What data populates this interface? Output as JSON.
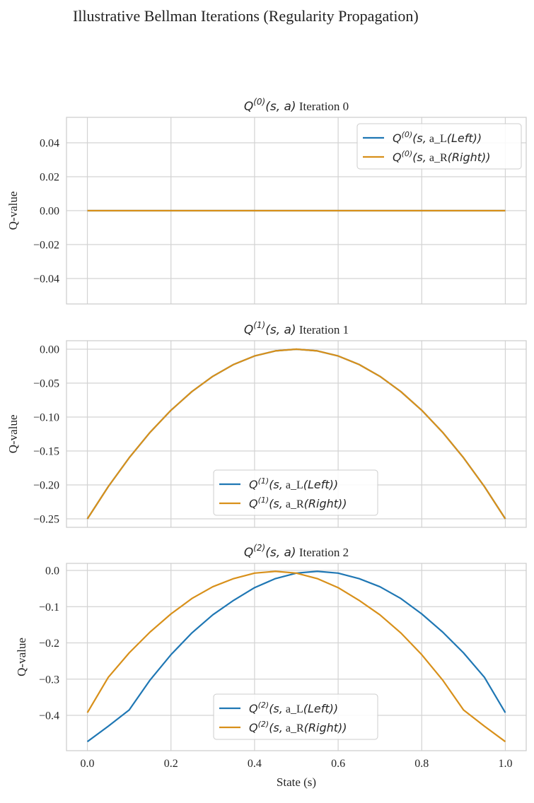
{
  "figure_title": "Illustrative Bellman Iterations (Regularity Propagation)",
  "colors": {
    "left": "#1f77b4",
    "right": "#d8901a",
    "grid": "#d3d3d3",
    "spine": "#cccccc"
  },
  "chart_data": [
    {
      "type": "line",
      "title": "Q^(0)(s, a) Iteration 0",
      "title_parts": {
        "q": "Q",
        "sup": "(0)",
        "args": "(s, a)",
        "suffix": "Iteration 0"
      },
      "xlabel": "",
      "ylabel": "Q-value",
      "xlim": [
        -0.05,
        1.05
      ],
      "ylim": [
        -0.055,
        0.055
      ],
      "xticks": [
        "0.0",
        "0.2",
        "0.4",
        "0.6",
        "0.8",
        "1.0"
      ],
      "xtick_values": [
        0.0,
        0.2,
        0.4,
        0.6,
        0.8,
        1.0
      ],
      "show_xticklabels": false,
      "yticks": [
        "0.04",
        "0.02",
        "0.00",
        "−0.02",
        "−0.04"
      ],
      "ytick_values": [
        0.04,
        0.02,
        0.0,
        -0.02,
        -0.04
      ],
      "grid": true,
      "legend_placement": "top-right",
      "x": [
        0.0,
        0.05,
        0.1,
        0.15,
        0.2,
        0.25,
        0.3,
        0.35,
        0.4,
        0.45,
        0.5,
        0.55,
        0.6,
        0.65,
        0.7,
        0.75,
        0.8,
        0.85,
        0.9,
        0.95,
        1.0
      ],
      "series": [
        {
          "name": "Q^(0)(s, a_L(Left))",
          "legend_parts": {
            "q": "Q",
            "sup": "(0)",
            "pre": "(s,",
            "mid": " a_L",
            "post": "(Left))"
          },
          "color": "#1f77b4",
          "values": [
            0,
            0,
            0,
            0,
            0,
            0,
            0,
            0,
            0,
            0,
            0,
            0,
            0,
            0,
            0,
            0,
            0,
            0,
            0,
            0,
            0
          ]
        },
        {
          "name": "Q^(0)(s, a_R(Right))",
          "legend_parts": {
            "q": "Q",
            "sup": "(0)",
            "pre": "(s,",
            "mid": " a_R",
            "post": "(Right))"
          },
          "color": "#d8901a",
          "values": [
            0,
            0,
            0,
            0,
            0,
            0,
            0,
            0,
            0,
            0,
            0,
            0,
            0,
            0,
            0,
            0,
            0,
            0,
            0,
            0,
            0
          ]
        }
      ]
    },
    {
      "type": "line",
      "title": "Q^(1)(s, a) Iteration 1",
      "title_parts": {
        "q": "Q",
        "sup": "(1)",
        "args": "(s, a)",
        "suffix": "Iteration 1"
      },
      "xlabel": "",
      "ylabel": "Q-value",
      "xlim": [
        -0.05,
        1.05
      ],
      "ylim": [
        -0.2625,
        0.0125
      ],
      "xticks": [
        "0.0",
        "0.2",
        "0.4",
        "0.6",
        "0.8",
        "1.0"
      ],
      "xtick_values": [
        0.0,
        0.2,
        0.4,
        0.6,
        0.8,
        1.0
      ],
      "show_xticklabels": false,
      "yticks": [
        "0.00",
        "−0.05",
        "−0.10",
        "−0.15",
        "−0.20",
        "−0.25"
      ],
      "ytick_values": [
        0.0,
        -0.05,
        -0.1,
        -0.15,
        -0.2,
        -0.25
      ],
      "grid": true,
      "legend_placement": "lower-center",
      "x": [
        0.0,
        0.05,
        0.1,
        0.15,
        0.2,
        0.25,
        0.3,
        0.35,
        0.4,
        0.45,
        0.5,
        0.55,
        0.6,
        0.65,
        0.7,
        0.75,
        0.8,
        0.85,
        0.9,
        0.95,
        1.0
      ],
      "series": [
        {
          "name": "Q^(1)(s, a_L(Left))",
          "legend_parts": {
            "q": "Q",
            "sup": "(1)",
            "pre": "(s,",
            "mid": " a_L",
            "post": "(Left))"
          },
          "color": "#1f77b4",
          "values": [
            -0.25,
            -0.2025,
            -0.16,
            -0.1225,
            -0.09,
            -0.0625,
            -0.04,
            -0.0225,
            -0.01,
            -0.0025,
            0.0,
            -0.0025,
            -0.01,
            -0.0225,
            -0.04,
            -0.0625,
            -0.09,
            -0.1225,
            -0.16,
            -0.2025,
            -0.25
          ]
        },
        {
          "name": "Q^(1)(s, a_R(Right))",
          "legend_parts": {
            "q": "Q",
            "sup": "(1)",
            "pre": "(s,",
            "mid": " a_R",
            "post": "(Right))"
          },
          "color": "#d8901a",
          "values": [
            -0.25,
            -0.2025,
            -0.16,
            -0.1225,
            -0.09,
            -0.0625,
            -0.04,
            -0.0225,
            -0.01,
            -0.0025,
            0.0,
            -0.0025,
            -0.01,
            -0.0225,
            -0.04,
            -0.0625,
            -0.09,
            -0.1225,
            -0.16,
            -0.2025,
            -0.25
          ]
        }
      ]
    },
    {
      "type": "line",
      "title": "Q^(2)(s, a) Iteration 2",
      "title_parts": {
        "q": "Q",
        "sup": "(2)",
        "args": "(s, a)",
        "suffix": "Iteration 2"
      },
      "xlabel": "State (s)",
      "ylabel": "Q-value",
      "xlim": [
        -0.05,
        1.05
      ],
      "ylim": [
        -0.4975,
        0.0195
      ],
      "xticks": [
        "0.0",
        "0.2",
        "0.4",
        "0.6",
        "0.8",
        "1.0"
      ],
      "xtick_values": [
        0.0,
        0.2,
        0.4,
        0.6,
        0.8,
        1.0
      ],
      "show_xticklabels": true,
      "yticks": [
        "0.0",
        "−0.1",
        "−0.2",
        "−0.3",
        "−0.4"
      ],
      "ytick_values": [
        0.0,
        -0.1,
        -0.2,
        -0.3,
        -0.4
      ],
      "grid": true,
      "legend_placement": "lower-center",
      "x": [
        0.0,
        0.05,
        0.1,
        0.15,
        0.2,
        0.25,
        0.3,
        0.35,
        0.4,
        0.45,
        0.5,
        0.55,
        0.6,
        0.65,
        0.7,
        0.75,
        0.8,
        0.85,
        0.9,
        0.95,
        1.0
      ],
      "series": [
        {
          "name": "Q^(2)(s, a_L(Left))",
          "legend_parts": {
            "q": "Q",
            "sup": "(2)",
            "pre": "(s,",
            "mid": " a_L",
            "post": "(Left))"
          },
          "color": "#1f77b4",
          "values": [
            -0.4725,
            -0.43,
            -0.385,
            -0.3025,
            -0.2325,
            -0.1725,
            -0.1225,
            -0.0825,
            -0.0475,
            -0.0225,
            -0.0075,
            -0.0025,
            -0.0075,
            -0.0225,
            -0.045,
            -0.0775,
            -0.12,
            -0.17,
            -0.2275,
            -0.295,
            -0.3925
          ]
        },
        {
          "name": "Q^(2)(s, a_R(Right))",
          "legend_parts": {
            "q": "Q",
            "sup": "(2)",
            "pre": "(s,",
            "mid": " a_R",
            "post": "(Right))"
          },
          "color": "#d8901a",
          "values": [
            -0.3925,
            -0.295,
            -0.2275,
            -0.17,
            -0.12,
            -0.0775,
            -0.045,
            -0.0225,
            -0.0075,
            -0.0025,
            -0.0075,
            -0.0225,
            -0.0475,
            -0.0825,
            -0.1225,
            -0.1725,
            -0.2325,
            -0.3025,
            -0.385,
            -0.43,
            -0.4725
          ]
        }
      ]
    }
  ]
}
